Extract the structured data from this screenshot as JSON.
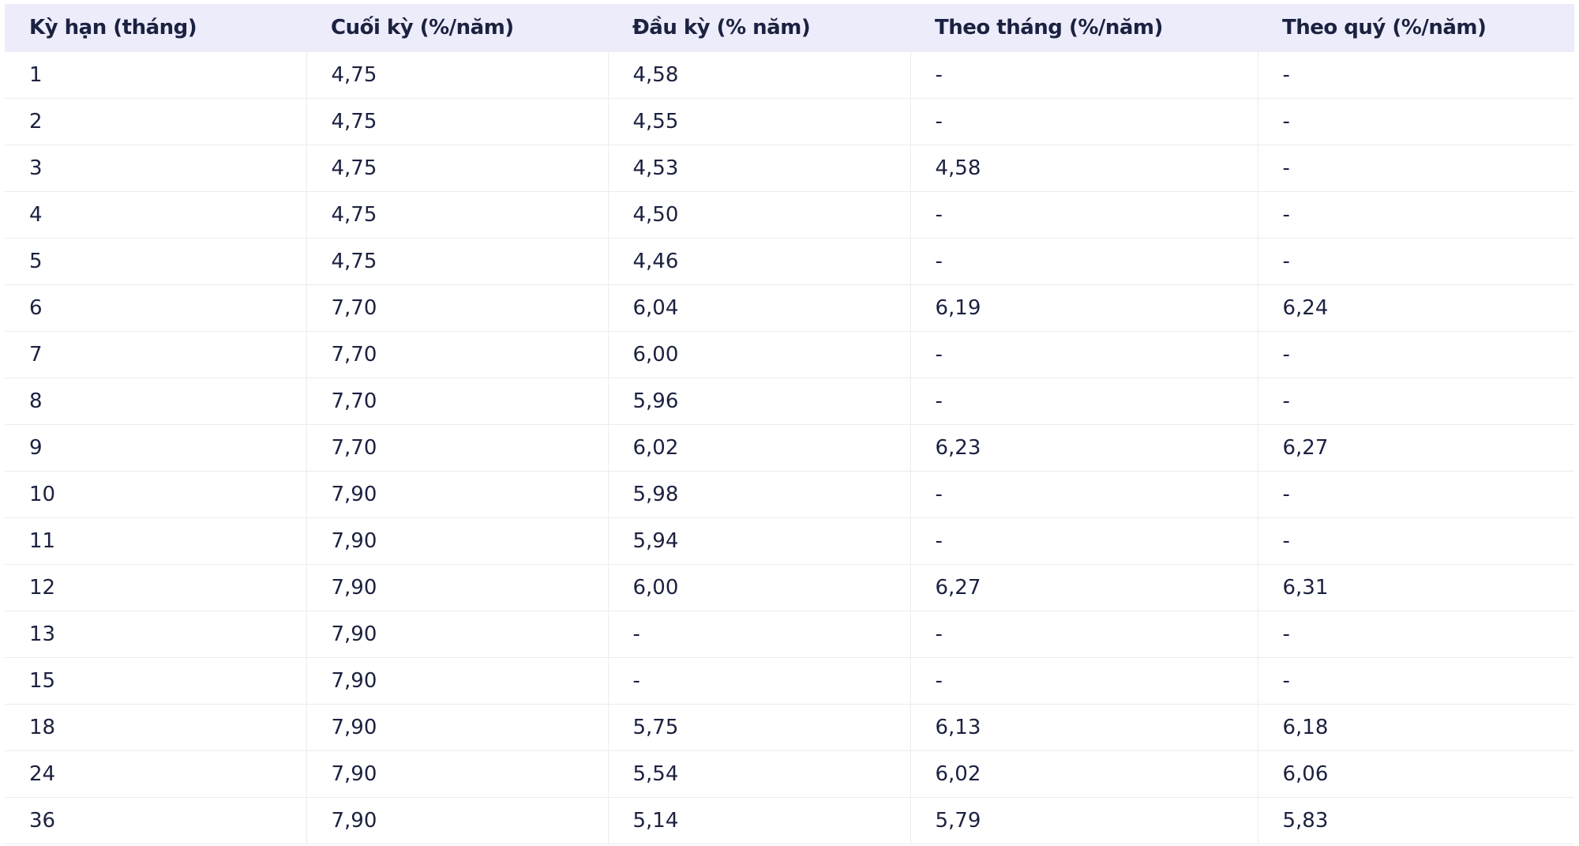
{
  "table": {
    "header": [
      "Kỳ hạn (tháng)",
      "Cuối kỳ (%/năm)",
      "Đầu kỳ (% năm)",
      "Theo tháng (%/năm)",
      "Theo quý (%/năm)"
    ],
    "rows": [
      [
        "1",
        "4,75",
        "4,58",
        "-",
        "-"
      ],
      [
        "2",
        "4,75",
        "4,55",
        "-",
        "-"
      ],
      [
        "3",
        "4,75",
        "4,53",
        "4,58",
        "-"
      ],
      [
        "4",
        "4,75",
        "4,50",
        "-",
        "-"
      ],
      [
        "5",
        "4,75",
        "4,46",
        "-",
        "-"
      ],
      [
        "6",
        "7,70",
        "6,04",
        "6,19",
        "6,24"
      ],
      [
        "7",
        "7,70",
        "6,00",
        "-",
        "-"
      ],
      [
        "8",
        "7,70",
        "5,96",
        "-",
        "-"
      ],
      [
        "9",
        "7,70",
        "6,02",
        "6,23",
        "6,27"
      ],
      [
        "10",
        "7,90",
        "5,98",
        "-",
        "-"
      ],
      [
        "11",
        "7,90",
        "5,94",
        "-",
        "-"
      ],
      [
        "12",
        "7,90",
        "6,00",
        "6,27",
        "6,31"
      ],
      [
        "13",
        "7,90",
        "-",
        "-",
        "-"
      ],
      [
        "15",
        "7,90",
        "-",
        "-",
        "-"
      ],
      [
        "18",
        "7,90",
        "5,75",
        "6,13",
        "6,18"
      ],
      [
        "24",
        "7,90",
        "5,54",
        "6,02",
        "6,06"
      ],
      [
        "36",
        "7,90",
        "5,14",
        "5,79",
        "5,83"
      ]
    ]
  }
}
